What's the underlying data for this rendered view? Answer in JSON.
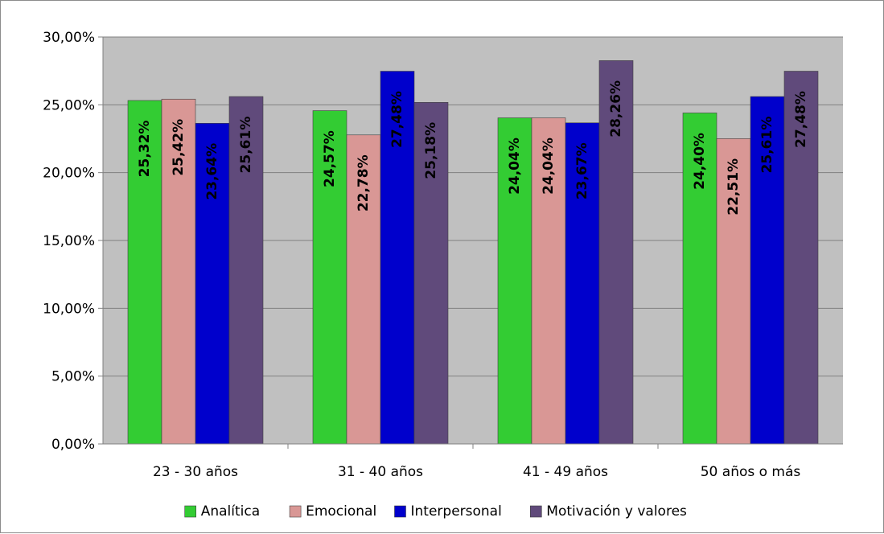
{
  "chart_data": {
    "type": "bar",
    "categories": [
      "23 - 30 años",
      "31 - 40 años",
      "41 - 49 años",
      "50 años o más"
    ],
    "series": [
      {
        "name": "Analítica",
        "color": "#33cc33",
        "values": [
          25.32,
          24.57,
          24.04,
          24.4
        ],
        "labels": [
          "25,32%",
          "24,57%",
          "24,04%",
          "24,40%"
        ]
      },
      {
        "name": "Emocional",
        "color": "#d99795",
        "values": [
          25.42,
          22.78,
          24.04,
          22.51
        ],
        "labels": [
          "25,42%",
          "22,78%",
          "24,04%",
          "22,51%"
        ]
      },
      {
        "name": "Interpersonal",
        "color": "#0000cc",
        "values": [
          23.64,
          27.48,
          23.67,
          25.61
        ],
        "labels": [
          "23,64%",
          "27,48%",
          "23,67%",
          "25,61%"
        ]
      },
      {
        "name": "Motivación y valores",
        "color": "#604a7b",
        "values": [
          25.61,
          25.18,
          28.26,
          27.48
        ],
        "labels": [
          "25,61%",
          "25,18%",
          "28,26%",
          "27,48%"
        ]
      }
    ],
    "yticks": [
      0,
      5,
      10,
      15,
      20,
      25,
      30
    ],
    "ytick_labels": [
      "0,00%",
      "5,00%",
      "10,00%",
      "15,00%",
      "20,00%",
      "25,00%",
      "30,00%"
    ],
    "ylim": [
      0,
      30
    ],
    "grid": true,
    "plot_background": "#c0c0c0",
    "legend_position": "bottom",
    "title": "",
    "xlabel": "",
    "ylabel": ""
  }
}
